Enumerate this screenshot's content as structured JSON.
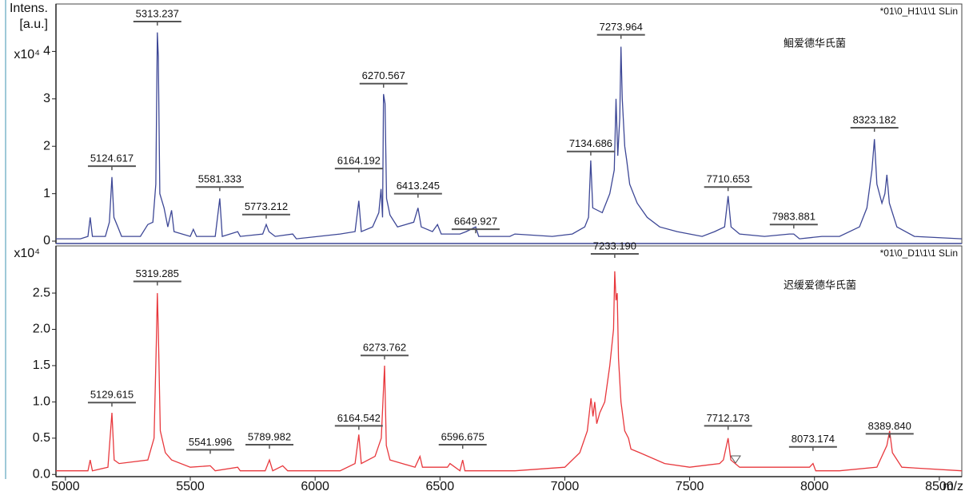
{
  "chart_data": [
    {
      "type": "line",
      "ylabel_lines": [
        "Intens.",
        "[a.u.]"
      ],
      "y_multiplier": "x10⁴",
      "run_id": "*01\\0_H1\\1\\1 SLin",
      "sample_name": "鮰爱德华氏菌",
      "color": "#3d4796",
      "xlim": [
        4962,
        8590
      ],
      "ylim": [
        -0.05,
        5.0
      ],
      "yticks": [
        0,
        1,
        2,
        3,
        4
      ],
      "x": [
        4962,
        5060,
        5090,
        5099,
        5108,
        5160,
        5176,
        5186,
        5194,
        5210,
        5225,
        5300,
        5330,
        5350,
        5362,
        5368,
        5372,
        5378,
        5395,
        5410,
        5425,
        5435,
        5500,
        5512,
        5525,
        5600,
        5618,
        5628,
        5690,
        5700,
        5790,
        5804,
        5815,
        5840,
        5910,
        5925,
        6100,
        6160,
        6175,
        6185,
        6230,
        6255,
        6264,
        6270,
        6274,
        6280,
        6286,
        6300,
        6330,
        6395,
        6412,
        6425,
        6470,
        6490,
        6505,
        6580,
        6605,
        6643,
        6655,
        6780,
        6800,
        6950,
        7030,
        7080,
        7095,
        7104,
        7112,
        7150,
        7180,
        7198,
        7205,
        7212,
        7220,
        7225,
        7230,
        7240,
        7248,
        7260,
        7290,
        7330,
        7380,
        7450,
        7550,
        7600,
        7640,
        7654,
        7666,
        7700,
        7800,
        7900,
        7917,
        7940,
        8030,
        8100,
        8180,
        8210,
        8230,
        8240,
        8250,
        8270,
        8282,
        8290,
        8300,
        8330,
        8400,
        8590
      ],
      "values": [
        0.05,
        0.05,
        0.1,
        0.5,
        0.1,
        0.1,
        0.4,
        1.35,
        0.5,
        0.3,
        0.1,
        0.1,
        0.35,
        0.4,
        1.2,
        4.4,
        3.9,
        1.0,
        0.7,
        0.3,
        0.65,
        0.2,
        0.1,
        0.25,
        0.1,
        0.1,
        0.9,
        0.1,
        0.2,
        0.1,
        0.15,
        0.35,
        0.2,
        0.1,
        0.15,
        0.05,
        0.15,
        0.2,
        0.85,
        0.2,
        0.3,
        0.6,
        1.1,
        0.5,
        3.1,
        2.9,
        0.9,
        0.55,
        0.3,
        0.4,
        0.7,
        0.3,
        0.2,
        0.35,
        0.15,
        0.15,
        0.2,
        0.3,
        0.1,
        0.1,
        0.15,
        0.1,
        0.15,
        0.3,
        0.5,
        1.7,
        0.7,
        0.6,
        1.0,
        1.5,
        3.0,
        1.8,
        2.6,
        4.1,
        3.0,
        2.0,
        1.7,
        1.2,
        0.8,
        0.5,
        0.3,
        0.2,
        0.1,
        0.2,
        0.3,
        0.95,
        0.3,
        0.15,
        0.1,
        0.15,
        0.15,
        0.05,
        0.1,
        0.1,
        0.3,
        0.7,
        1.5,
        2.15,
        1.2,
        0.8,
        1.0,
        1.4,
        0.8,
        0.3,
        0.1,
        0.05
      ],
      "peak_labels": [
        {
          "x": 5368,
          "y": 4.63,
          "label": "5313.237"
        },
        {
          "x": 5186,
          "y": 1.58,
          "label": "5124.617"
        },
        {
          "x": 5618,
          "y": 1.14,
          "label": "5581.333"
        },
        {
          "x": 5804,
          "y": 0.56,
          "label": "5773.212"
        },
        {
          "x": 6175,
          "y": 1.53,
          "label": "6164.192"
        },
        {
          "x": 6274,
          "y": 3.32,
          "label": "6270.567"
        },
        {
          "x": 6412,
          "y": 1.0,
          "label": "6413.245"
        },
        {
          "x": 6643,
          "y": 0.25,
          "label": "6649.927"
        },
        {
          "x": 7104,
          "y": 1.89,
          "label": "7134.686"
        },
        {
          "x": 7225,
          "y": 4.35,
          "label": "7273.964"
        },
        {
          "x": 7654,
          "y": 1.14,
          "label": "7710.653"
        },
        {
          "x": 7917,
          "y": 0.35,
          "label": "7983.881"
        },
        {
          "x": 8240,
          "y": 2.39,
          "label": "8323.182"
        }
      ]
    },
    {
      "type": "line",
      "y_multiplier": "x10⁴",
      "run_id": "*01\\0_D1\\1\\1 SLin",
      "sample_name": "迟缓爱德华氏菌",
      "color": "#e8383d",
      "xlabel": "m/z",
      "xlim": [
        4962,
        8590
      ],
      "xticks": [
        5000,
        5500,
        6000,
        6500,
        7000,
        7500,
        8000,
        8500
      ],
      "ylim": [
        -0.03,
        3.15
      ],
      "yticks": [
        {
          "value": 0,
          "label": "0.0"
        },
        {
          "value": 0.5,
          "label": "0.5"
        },
        {
          "value": 1,
          "label": "1.0"
        },
        {
          "value": 1.5,
          "label": "1.5"
        },
        {
          "value": 2,
          "label": "2.0"
        },
        {
          "value": 2.5,
          "label": "2.5"
        }
      ],
      "x": [
        4962,
        5090,
        5099,
        5108,
        5170,
        5186,
        5195,
        5215,
        5330,
        5355,
        5364,
        5368,
        5372,
        5380,
        5400,
        5425,
        5500,
        5580,
        5600,
        5690,
        5700,
        5800,
        5817,
        5830,
        5870,
        5890,
        6100,
        6160,
        6175,
        6185,
        6240,
        6265,
        6278,
        6285,
        6300,
        6400,
        6420,
        6430,
        6530,
        6540,
        6580,
        6591,
        6600,
        6800,
        7000,
        7060,
        7090,
        7105,
        7113,
        7120,
        7128,
        7140,
        7160,
        7180,
        7195,
        7200,
        7205,
        7210,
        7215,
        7225,
        7240,
        7255,
        7265,
        7300,
        7400,
        7500,
        7620,
        7635,
        7654,
        7665,
        7700,
        7800,
        7980,
        7994,
        8005,
        8100,
        8250,
        8290,
        8301,
        8312,
        8350,
        8590
      ],
      "values": [
        0.05,
        0.05,
        0.2,
        0.05,
        0.1,
        0.85,
        0.2,
        0.15,
        0.2,
        0.5,
        1.8,
        2.5,
        2.0,
        0.6,
        0.3,
        0.2,
        0.1,
        0.12,
        0.05,
        0.1,
        0.05,
        0.05,
        0.2,
        0.05,
        0.12,
        0.05,
        0.05,
        0.15,
        0.55,
        0.15,
        0.25,
        0.5,
        1.5,
        0.4,
        0.2,
        0.1,
        0.25,
        0.1,
        0.1,
        0.15,
        0.05,
        0.2,
        0.05,
        0.05,
        0.1,
        0.3,
        0.6,
        1.05,
        0.8,
        1.0,
        0.7,
        0.85,
        1.0,
        1.5,
        2.0,
        2.8,
        2.4,
        2.5,
        1.6,
        1.0,
        0.6,
        0.5,
        0.35,
        0.3,
        0.15,
        0.1,
        0.15,
        0.2,
        0.5,
        0.2,
        0.1,
        0.1,
        0.1,
        0.15,
        0.05,
        0.05,
        0.1,
        0.4,
        0.6,
        0.3,
        0.1,
        0.05
      ],
      "peak_labels": [
        {
          "x": 5368,
          "y": 2.66,
          "label": "5319.285"
        },
        {
          "x": 5186,
          "y": 0.99,
          "label": "5129.615"
        },
        {
          "x": 5580,
          "y": 0.34,
          "label": "5541.996"
        },
        {
          "x": 5817,
          "y": 0.41,
          "label": "5789.982"
        },
        {
          "x": 6175,
          "y": 0.67,
          "label": "6164.542"
        },
        {
          "x": 6278,
          "y": 1.64,
          "label": "6273.762"
        },
        {
          "x": 6591,
          "y": 0.41,
          "label": "6596.675"
        },
        {
          "x": 7200,
          "y": 3.04,
          "label": "7233.190"
        },
        {
          "x": 7654,
          "y": 0.67,
          "label": "7712.173"
        },
        {
          "x": 7994,
          "y": 0.38,
          "label": "8073.174"
        },
        {
          "x": 8301,
          "y": 0.56,
          "label": "8389.840"
        }
      ]
    }
  ]
}
